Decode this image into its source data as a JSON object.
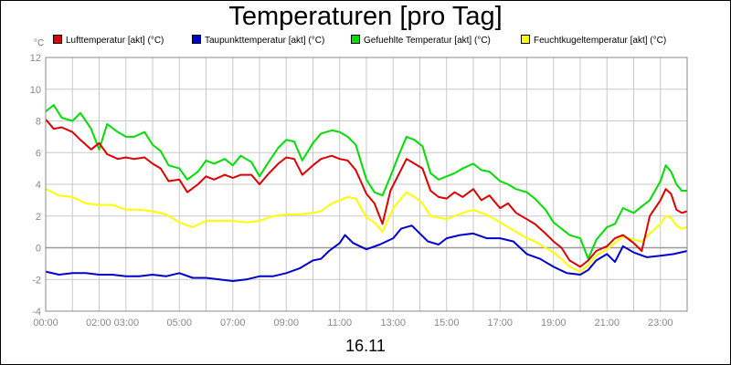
{
  "chart_data": {
    "type": "line",
    "title": "Temperaturen [pro Tag]",
    "y_unit": "°C",
    "xlabel": "16.11",
    "ylim": [
      -4,
      12
    ],
    "y_ticks": [
      -4,
      -2,
      0,
      2,
      4,
      6,
      8,
      10,
      12
    ],
    "xlim": [
      0,
      24
    ],
    "x_ticks": [
      {
        "h": 0,
        "label": "00:00"
      },
      {
        "h": 2.5,
        "label": "02:00 03:00"
      },
      {
        "h": 5,
        "label": "05:00"
      },
      {
        "h": 7,
        "label": "07:00"
      },
      {
        "h": 9,
        "label": "09:00"
      },
      {
        "h": 11,
        "label": "11:00"
      },
      {
        "h": 13,
        "label": "13:00"
      },
      {
        "h": 15,
        "label": "15:00"
      },
      {
        "h": 17,
        "label": "17:00"
      },
      {
        "h": 19,
        "label": "19:00"
      },
      {
        "h": 21,
        "label": "21:00"
      },
      {
        "h": 23,
        "label": "23:00"
      }
    ],
    "grid": true,
    "legend_position": "top",
    "series": [
      {
        "name": "Lufttemperatur [akt] (°C)",
        "color": "#dd0000",
        "points": [
          [
            0.0,
            8.1
          ],
          [
            0.3,
            7.5
          ],
          [
            0.6,
            7.6
          ],
          [
            1.0,
            7.3
          ],
          [
            1.3,
            6.8
          ],
          [
            1.7,
            6.2
          ],
          [
            2.0,
            6.6
          ],
          [
            2.3,
            5.9
          ],
          [
            2.7,
            5.6
          ],
          [
            3.0,
            5.7
          ],
          [
            3.3,
            5.6
          ],
          [
            3.7,
            5.7
          ],
          [
            4.0,
            5.3
          ],
          [
            4.3,
            5.0
          ],
          [
            4.6,
            4.2
          ],
          [
            5.0,
            4.3
          ],
          [
            5.3,
            3.5
          ],
          [
            5.7,
            4.0
          ],
          [
            6.0,
            4.5
          ],
          [
            6.3,
            4.3
          ],
          [
            6.7,
            4.6
          ],
          [
            7.0,
            4.4
          ],
          [
            7.3,
            4.6
          ],
          [
            7.7,
            4.6
          ],
          [
            8.0,
            4.0
          ],
          [
            8.3,
            4.6
          ],
          [
            8.7,
            5.3
          ],
          [
            9.0,
            5.7
          ],
          [
            9.3,
            5.6
          ],
          [
            9.6,
            4.6
          ],
          [
            10.0,
            5.2
          ],
          [
            10.3,
            5.6
          ],
          [
            10.7,
            5.8
          ],
          [
            11.0,
            5.6
          ],
          [
            11.3,
            5.5
          ],
          [
            11.6,
            4.9
          ],
          [
            12.0,
            3.4
          ],
          [
            12.3,
            2.8
          ],
          [
            12.6,
            1.5
          ],
          [
            12.9,
            3.6
          ],
          [
            13.2,
            4.6
          ],
          [
            13.5,
            5.6
          ],
          [
            13.8,
            5.3
          ],
          [
            14.1,
            5.0
          ],
          [
            14.4,
            3.6
          ],
          [
            14.7,
            3.2
          ],
          [
            15.0,
            3.1
          ],
          [
            15.3,
            3.5
          ],
          [
            15.6,
            3.2
          ],
          [
            16.0,
            3.7
          ],
          [
            16.3,
            3.0
          ],
          [
            16.6,
            3.3
          ],
          [
            17.0,
            2.5
          ],
          [
            17.3,
            2.8
          ],
          [
            17.6,
            2.2
          ],
          [
            18.0,
            1.8
          ],
          [
            18.3,
            1.5
          ],
          [
            18.7,
            0.9
          ],
          [
            19.0,
            0.4
          ],
          [
            19.3,
            0.0
          ],
          [
            19.6,
            -0.8
          ],
          [
            20.0,
            -1.2
          ],
          [
            20.3,
            -0.8
          ],
          [
            20.6,
            -0.2
          ],
          [
            21.0,
            0.1
          ],
          [
            21.3,
            0.6
          ],
          [
            21.6,
            0.8
          ],
          [
            22.0,
            0.3
          ],
          [
            22.3,
            -0.2
          ],
          [
            22.6,
            2.0
          ],
          [
            23.0,
            3.0
          ],
          [
            23.2,
            3.7
          ],
          [
            23.4,
            3.4
          ],
          [
            23.6,
            2.4
          ],
          [
            23.8,
            2.2
          ],
          [
            24.0,
            2.3
          ]
        ]
      },
      {
        "name": "Taupunkttemperatur [akt] (°C)",
        "color": "#0000cc",
        "points": [
          [
            0.0,
            -1.5
          ],
          [
            0.5,
            -1.7
          ],
          [
            1.0,
            -1.6
          ],
          [
            1.5,
            -1.6
          ],
          [
            2.0,
            -1.7
          ],
          [
            2.5,
            -1.7
          ],
          [
            3.0,
            -1.8
          ],
          [
            3.5,
            -1.8
          ],
          [
            4.0,
            -1.7
          ],
          [
            4.5,
            -1.8
          ],
          [
            5.0,
            -1.6
          ],
          [
            5.5,
            -1.9
          ],
          [
            6.0,
            -1.9
          ],
          [
            6.5,
            -2.0
          ],
          [
            7.0,
            -2.1
          ],
          [
            7.5,
            -2.0
          ],
          [
            8.0,
            -1.8
          ],
          [
            8.5,
            -1.8
          ],
          [
            9.0,
            -1.6
          ],
          [
            9.5,
            -1.3
          ],
          [
            10.0,
            -0.8
          ],
          [
            10.3,
            -0.7
          ],
          [
            10.6,
            -0.2
          ],
          [
            11.0,
            0.3
          ],
          [
            11.2,
            0.8
          ],
          [
            11.5,
            0.3
          ],
          [
            12.0,
            -0.1
          ],
          [
            12.5,
            0.2
          ],
          [
            13.0,
            0.6
          ],
          [
            13.3,
            1.2
          ],
          [
            13.7,
            1.4
          ],
          [
            14.0,
            0.9
          ],
          [
            14.3,
            0.4
          ],
          [
            14.7,
            0.2
          ],
          [
            15.0,
            0.6
          ],
          [
            15.5,
            0.8
          ],
          [
            16.0,
            0.9
          ],
          [
            16.5,
            0.6
          ],
          [
            17.0,
            0.6
          ],
          [
            17.5,
            0.4
          ],
          [
            18.0,
            -0.4
          ],
          [
            18.5,
            -0.7
          ],
          [
            19.0,
            -1.2
          ],
          [
            19.5,
            -1.6
          ],
          [
            20.0,
            -1.7
          ],
          [
            20.3,
            -1.4
          ],
          [
            20.6,
            -0.8
          ],
          [
            21.0,
            -0.4
          ],
          [
            21.3,
            -0.9
          ],
          [
            21.6,
            0.1
          ],
          [
            22.0,
            -0.3
          ],
          [
            22.5,
            -0.6
          ],
          [
            23.0,
            -0.5
          ],
          [
            23.5,
            -0.4
          ],
          [
            24.0,
            -0.2
          ]
        ]
      },
      {
        "name": "Gefuehlte Temperatur [akt] (°C)",
        "color": "#00dd00",
        "points": [
          [
            0.0,
            8.6
          ],
          [
            0.3,
            9.0
          ],
          [
            0.6,
            8.2
          ],
          [
            1.0,
            8.0
          ],
          [
            1.3,
            8.5
          ],
          [
            1.7,
            7.5
          ],
          [
            2.0,
            6.2
          ],
          [
            2.3,
            7.8
          ],
          [
            2.7,
            7.3
          ],
          [
            3.0,
            7.0
          ],
          [
            3.3,
            7.0
          ],
          [
            3.7,
            7.3
          ],
          [
            4.0,
            6.5
          ],
          [
            4.3,
            6.1
          ],
          [
            4.6,
            5.2
          ],
          [
            5.0,
            5.0
          ],
          [
            5.3,
            4.3
          ],
          [
            5.7,
            4.8
          ],
          [
            6.0,
            5.5
          ],
          [
            6.3,
            5.3
          ],
          [
            6.7,
            5.6
          ],
          [
            7.0,
            5.2
          ],
          [
            7.3,
            5.8
          ],
          [
            7.7,
            5.4
          ],
          [
            8.0,
            4.5
          ],
          [
            8.3,
            5.3
          ],
          [
            8.7,
            6.3
          ],
          [
            9.0,
            6.8
          ],
          [
            9.3,
            6.7
          ],
          [
            9.6,
            5.5
          ],
          [
            10.0,
            6.6
          ],
          [
            10.3,
            7.2
          ],
          [
            10.7,
            7.4
          ],
          [
            11.0,
            7.3
          ],
          [
            11.3,
            7.0
          ],
          [
            11.6,
            6.5
          ],
          [
            12.0,
            4.3
          ],
          [
            12.3,
            3.5
          ],
          [
            12.6,
            3.3
          ],
          [
            12.9,
            4.5
          ],
          [
            13.2,
            5.8
          ],
          [
            13.5,
            7.0
          ],
          [
            13.8,
            6.8
          ],
          [
            14.1,
            6.4
          ],
          [
            14.4,
            4.7
          ],
          [
            14.7,
            4.3
          ],
          [
            15.0,
            4.5
          ],
          [
            15.3,
            4.7
          ],
          [
            15.6,
            5.0
          ],
          [
            16.0,
            5.3
          ],
          [
            16.3,
            4.9
          ],
          [
            16.6,
            4.8
          ],
          [
            17.0,
            4.2
          ],
          [
            17.3,
            4.0
          ],
          [
            17.6,
            3.7
          ],
          [
            18.0,
            3.5
          ],
          [
            18.3,
            3.1
          ],
          [
            18.7,
            2.4
          ],
          [
            19.0,
            1.6
          ],
          [
            19.3,
            1.2
          ],
          [
            19.6,
            0.8
          ],
          [
            20.0,
            0.6
          ],
          [
            20.3,
            -0.7
          ],
          [
            20.6,
            0.5
          ],
          [
            21.0,
            1.3
          ],
          [
            21.3,
            1.5
          ],
          [
            21.6,
            2.5
          ],
          [
            22.0,
            2.2
          ],
          [
            22.3,
            2.6
          ],
          [
            22.6,
            3.0
          ],
          [
            23.0,
            4.2
          ],
          [
            23.2,
            5.2
          ],
          [
            23.4,
            4.8
          ],
          [
            23.6,
            4.0
          ],
          [
            23.8,
            3.6
          ],
          [
            24.0,
            3.6
          ]
        ]
      },
      {
        "name": "Feuchtkugeltemperatur [akt] (°C)",
        "color": "#ffff00",
        "points": [
          [
            0.0,
            3.7
          ],
          [
            0.5,
            3.3
          ],
          [
            1.0,
            3.2
          ],
          [
            1.5,
            2.8
          ],
          [
            2.0,
            2.7
          ],
          [
            2.5,
            2.7
          ],
          [
            3.0,
            2.4
          ],
          [
            3.5,
            2.4
          ],
          [
            4.0,
            2.3
          ],
          [
            4.5,
            2.1
          ],
          [
            5.0,
            1.6
          ],
          [
            5.5,
            1.3
          ],
          [
            6.0,
            1.7
          ],
          [
            6.5,
            1.7
          ],
          [
            7.0,
            1.7
          ],
          [
            7.5,
            1.6
          ],
          [
            8.0,
            1.7
          ],
          [
            8.5,
            2.0
          ],
          [
            9.0,
            2.1
          ],
          [
            9.5,
            2.1
          ],
          [
            10.0,
            2.2
          ],
          [
            10.3,
            2.3
          ],
          [
            10.7,
            2.8
          ],
          [
            11.0,
            3.0
          ],
          [
            11.3,
            3.2
          ],
          [
            11.6,
            3.1
          ],
          [
            12.0,
            1.9
          ],
          [
            12.3,
            1.6
          ],
          [
            12.6,
            1.0
          ],
          [
            13.0,
            2.5
          ],
          [
            13.3,
            3.1
          ],
          [
            13.5,
            3.5
          ],
          [
            13.8,
            3.2
          ],
          [
            14.1,
            2.8
          ],
          [
            14.4,
            2.0
          ],
          [
            14.7,
            1.9
          ],
          [
            15.0,
            1.8
          ],
          [
            15.3,
            2.0
          ],
          [
            15.6,
            2.2
          ],
          [
            16.0,
            2.4
          ],
          [
            16.3,
            2.2
          ],
          [
            16.6,
            2.0
          ],
          [
            17.0,
            1.6
          ],
          [
            17.3,
            1.3
          ],
          [
            17.6,
            1.0
          ],
          [
            18.0,
            0.6
          ],
          [
            18.3,
            0.4
          ],
          [
            18.7,
            0.0
          ],
          [
            19.0,
            -0.3
          ],
          [
            19.3,
            -0.7
          ],
          [
            19.6,
            -1.2
          ],
          [
            20.0,
            -1.5
          ],
          [
            20.3,
            -1.1
          ],
          [
            20.6,
            -0.5
          ],
          [
            21.0,
            -0.1
          ],
          [
            21.3,
            0.3
          ],
          [
            21.6,
            0.7
          ],
          [
            22.0,
            0.5
          ],
          [
            22.3,
            0.4
          ],
          [
            22.6,
            0.9
          ],
          [
            23.0,
            1.5
          ],
          [
            23.2,
            2.0
          ],
          [
            23.4,
            1.9
          ],
          [
            23.6,
            1.4
          ],
          [
            23.8,
            1.2
          ],
          [
            24.0,
            1.3
          ]
        ]
      }
    ]
  }
}
